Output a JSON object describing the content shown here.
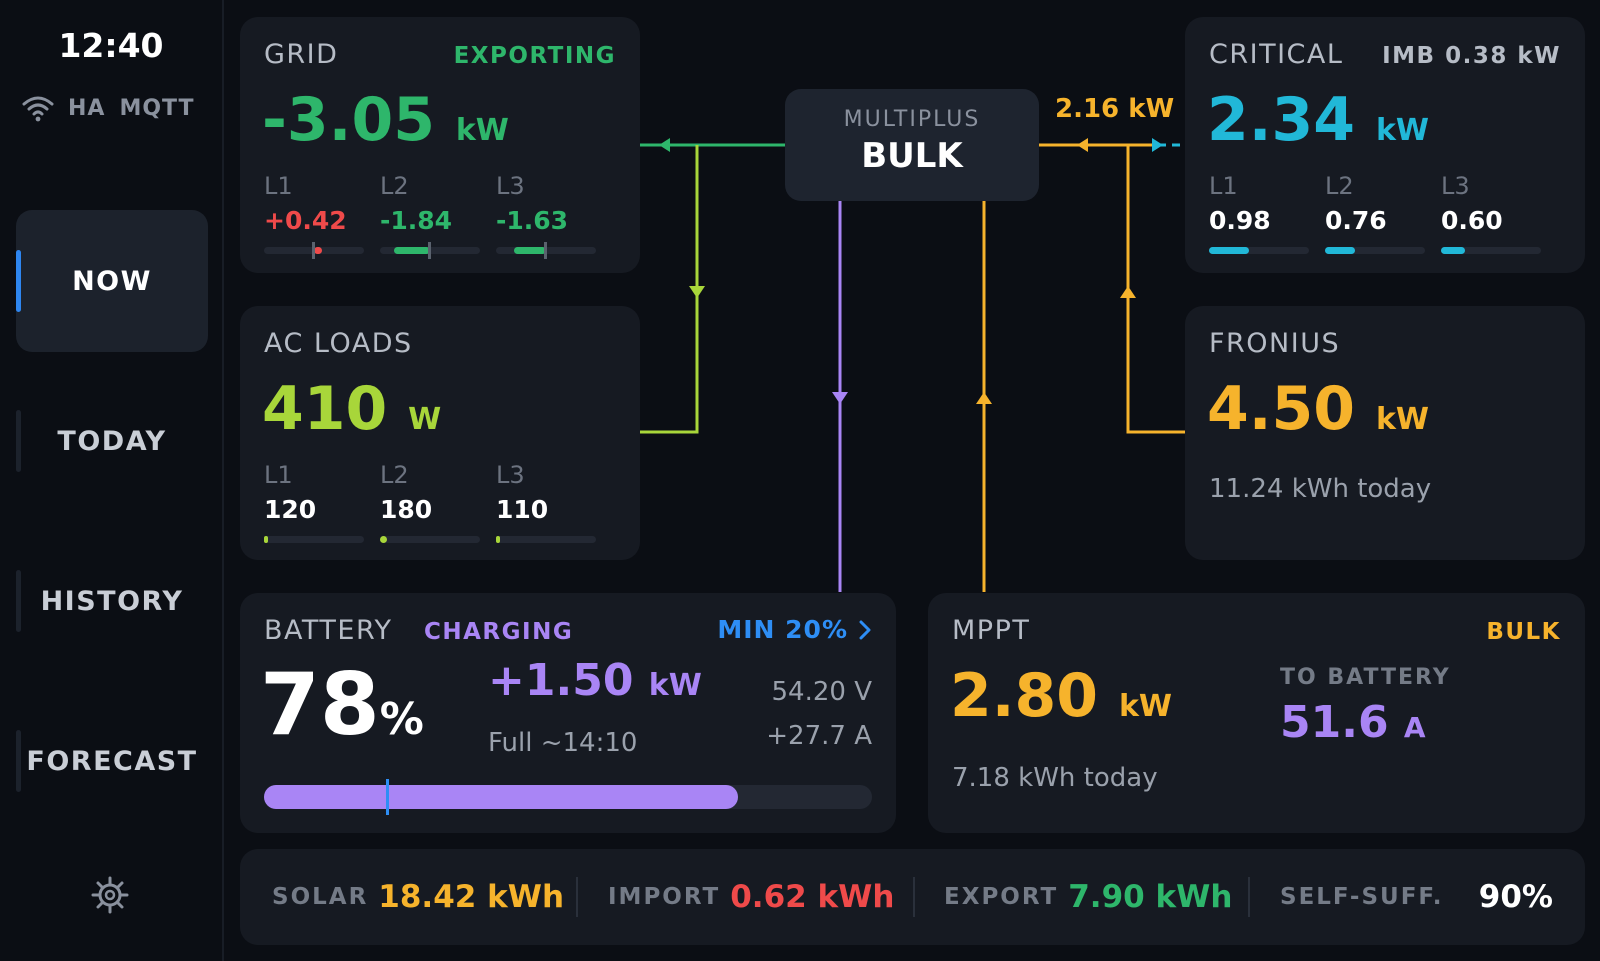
{
  "status_bar": {
    "time": "12:40",
    "ha": "HA",
    "mqtt": "MQTT"
  },
  "nav": {
    "now": "NOW",
    "today": "TODAY",
    "history": "HISTORY",
    "forecast": "FORECAST"
  },
  "grid": {
    "title": "GRID",
    "state": "EXPORTING",
    "value": "-3.05",
    "unit": "kW",
    "phases": [
      {
        "label": "L1",
        "value": "+0.42"
      },
      {
        "label": "L2",
        "value": "-1.84"
      },
      {
        "label": "L3",
        "value": "-1.63"
      }
    ]
  },
  "critical": {
    "title": "CRITICAL",
    "imbalance": "IMB 0.38 kW",
    "value": "2.34",
    "unit": "kW",
    "phases": [
      {
        "label": "L1",
        "value": "0.98"
      },
      {
        "label": "L2",
        "value": "0.76"
      },
      {
        "label": "L3",
        "value": "0.60"
      }
    ]
  },
  "ac_loads": {
    "title": "AC LOADS",
    "value": "410",
    "unit": "W",
    "phases": [
      {
        "label": "L1",
        "value": "120"
      },
      {
        "label": "L2",
        "value": "180"
      },
      {
        "label": "L3",
        "value": "110"
      }
    ]
  },
  "fronius": {
    "title": "FRONIUS",
    "value": "4.50",
    "unit": "kW",
    "today": "11.24 kWh today"
  },
  "multiplus": {
    "title": "MULTIPLUS",
    "state": "BULK",
    "flow": "2.16 kW"
  },
  "battery": {
    "title": "BATTERY",
    "state": "CHARGING",
    "min_label": "MIN 20%",
    "soc": "78",
    "soc_unit": "%",
    "power": "+1.50",
    "power_unit": "kW",
    "eta": "Full ~14:10",
    "voltage": "54.20 V",
    "current": "+27.7 A",
    "soc_fraction": 0.78,
    "min_fraction": 0.2
  },
  "mppt": {
    "title": "MPPT",
    "state": "BULK",
    "value": "2.80",
    "unit": "kW",
    "today": "7.18 kWh today",
    "to_battery_label": "TO BATTERY",
    "to_battery_value": "51.6",
    "to_battery_unit": "A"
  },
  "summary": {
    "solar_label": "SOLAR",
    "solar_value": "18.42 kWh",
    "import_label": "IMPORT",
    "import_value": "0.62 kWh",
    "export_label": "EXPORT",
    "export_value": "7.90 kWh",
    "self_label": "SELF-SUFF.",
    "self_value": "90%"
  },
  "colors": {
    "grid": "#2eb66b",
    "import": "#ef4a4a",
    "loads": "#a8d63a",
    "critical": "#21b8d8",
    "solar": "#f6b32c",
    "battery": "#a985f5",
    "accent": "#2e8ef5"
  },
  "icons": {
    "wifi": "wifi-icon",
    "settings": "gear-icon",
    "chevron": "chevron-right-icon"
  }
}
